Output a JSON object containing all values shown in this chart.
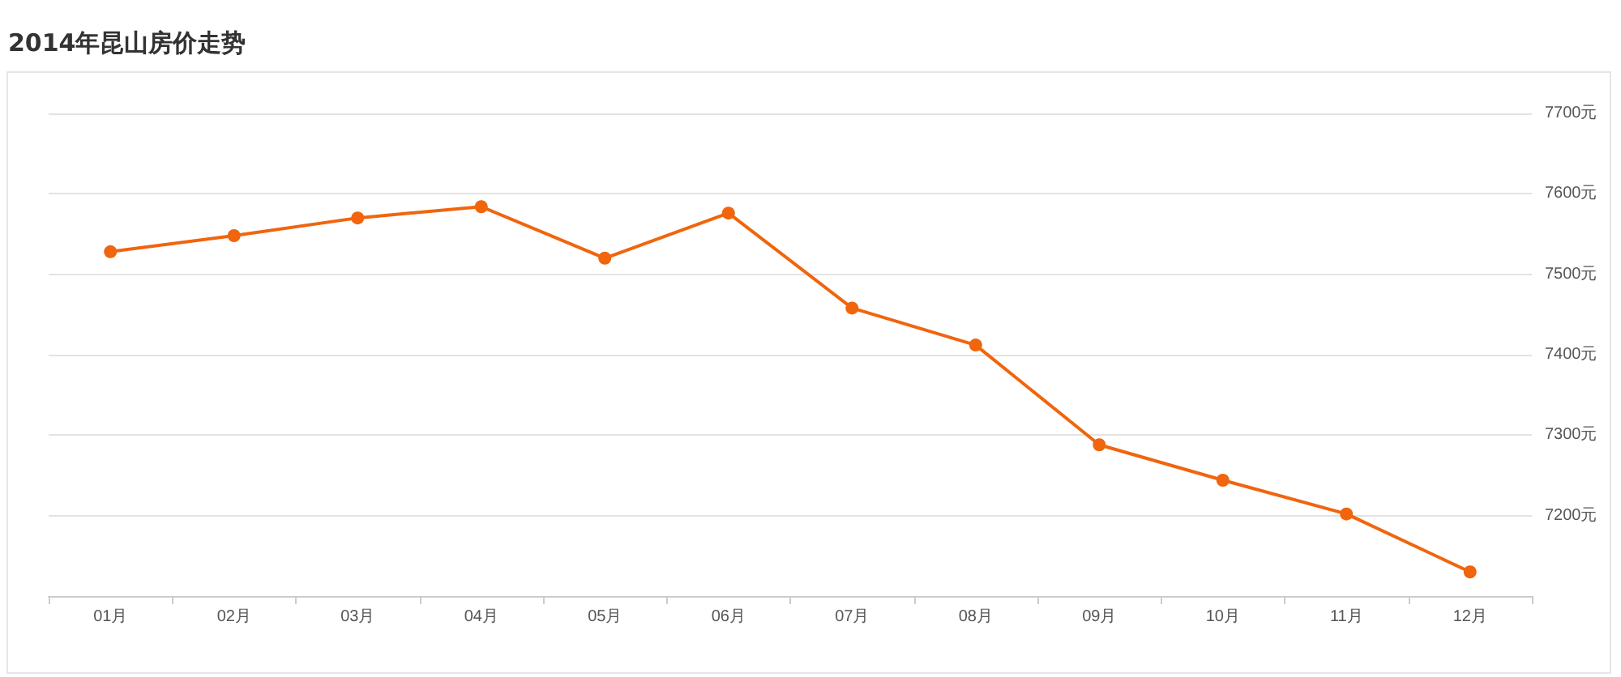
{
  "chart_data": {
    "type": "line",
    "title": "2014年昆山房价走势",
    "categories": [
      "01月",
      "02月",
      "03月",
      "04月",
      "05月",
      "06月",
      "07月",
      "08月",
      "09月",
      "10月",
      "11月",
      "12月"
    ],
    "series": [
      {
        "color": "#f0650e",
        "values": [
          7528,
          7548,
          7570,
          7584,
          7520,
          7576,
          7458,
          7412,
          7288,
          7244,
          7202,
          7130
        ]
      }
    ],
    "ylim": [
      7100,
      7700
    ],
    "yticks": [
      {
        "value": 7200,
        "label": "7200元"
      },
      {
        "value": 7300,
        "label": "7300元"
      },
      {
        "value": 7400,
        "label": "7400元"
      },
      {
        "value": 7500,
        "label": "7500元"
      },
      {
        "value": 7600,
        "label": "7600元"
      },
      {
        "value": 7700,
        "label": "7700元"
      }
    ],
    "grid": "y",
    "marker": "circle",
    "line_style": "solid"
  }
}
